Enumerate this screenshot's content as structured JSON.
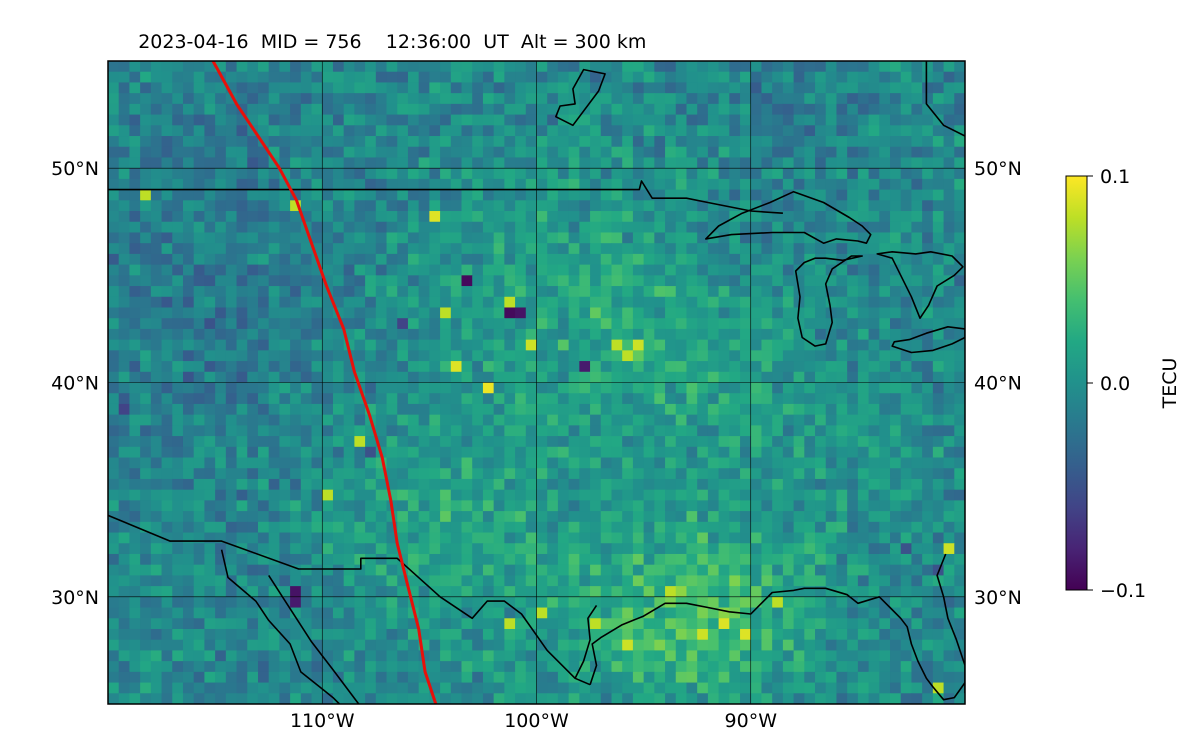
{
  "title": {
    "date": "2023-04-16",
    "mid": "MID = 756",
    "time": "12:36:00  UT",
    "alt": "Alt = 300 km"
  },
  "map": {
    "lon_range": [
      -120,
      -80
    ],
    "lat_range": [
      25,
      55
    ],
    "projection": "PlateCarree",
    "gridlines": true,
    "x_ticks": [
      {
        "value": -110,
        "label": "110°W"
      },
      {
        "value": -100,
        "label": "100°W"
      },
      {
        "value": -90,
        "label": "90°W"
      }
    ],
    "y_ticks": [
      {
        "value": 50,
        "label": "50°N"
      },
      {
        "value": 40,
        "label": "40°N"
      },
      {
        "value": 30,
        "label": "30°N"
      }
    ],
    "terminator_color": "#e8100a",
    "coastline_color": "#000000"
  },
  "colorbar": {
    "label": "TECU",
    "colormap": "viridis",
    "min": -0.1,
    "max": 0.1,
    "ticks": [
      {
        "value": 0.1,
        "label": "0.1"
      },
      {
        "value": 0.0,
        "label": "0.0"
      },
      {
        "value": -0.1,
        "label": "−0.1"
      }
    ]
  },
  "chart_data": {
    "type": "heatmap",
    "title": "2023-04-16  MID = 756    12:36:00  UT  Alt = 300 km",
    "quantity": "differential TEC",
    "units": "TECU",
    "value_range": [
      -0.1,
      0.1
    ],
    "grid_resolution_deg": 0.5,
    "background_level": -0.005,
    "anomalies": [
      {
        "lon": -104.5,
        "lat": 32.5,
        "amplitude": 0.025,
        "sigma_deg": 4.0
      },
      {
        "lon": -95.0,
        "lat": 29.0,
        "amplitude": 0.03,
        "sigma_deg": 3.0
      },
      {
        "lon": -91.0,
        "lat": 28.5,
        "amplitude": 0.03,
        "sigma_deg": 2.5
      },
      {
        "lon": -99.5,
        "lat": 44.5,
        "amplitude": 0.015,
        "sigma_deg": 4.0
      },
      {
        "lon": -95.0,
        "lat": 41.5,
        "amplitude": 0.02,
        "sigma_deg": 3.0
      },
      {
        "lon": -89.0,
        "lat": 36.0,
        "amplitude": 0.012,
        "sigma_deg": 4.0
      },
      {
        "lon": -116.0,
        "lat": 42.0,
        "amplitude": -0.012,
        "sigma_deg": 5.0
      },
      {
        "lon": -115.0,
        "lat": 52.0,
        "amplitude": -0.01,
        "sigma_deg": 4.0
      },
      {
        "lon": -88.0,
        "lat": 54.0,
        "amplitude": -0.012,
        "sigma_deg": 3.0
      },
      {
        "lon": -110.0,
        "lat": 27.0,
        "amplitude": -0.008,
        "sigma_deg": 4.0
      }
    ],
    "hot_spots": [
      {
        "lon": -102.5,
        "lat": 39.5,
        "value": 0.095
      },
      {
        "lon": -104.0,
        "lat": 40.5,
        "value": 0.09
      },
      {
        "lon": -95.5,
        "lat": 41.5,
        "value": 0.085
      },
      {
        "lon": -96.5,
        "lat": 41.5,
        "value": 0.08
      },
      {
        "lon": -96.0,
        "lat": 41.0,
        "value": 0.08
      },
      {
        "lon": -104.5,
        "lat": 43.0,
        "value": 0.08
      },
      {
        "lon": -101.5,
        "lat": 43.5,
        "value": 0.08
      },
      {
        "lon": -100.5,
        "lat": 41.5,
        "value": 0.085
      },
      {
        "lon": -105.0,
        "lat": 47.5,
        "value": 0.09
      },
      {
        "lon": -118.5,
        "lat": 48.5,
        "value": 0.08
      },
      {
        "lon": -111.5,
        "lat": 48.0,
        "value": 0.08
      },
      {
        "lon": -108.5,
        "lat": 37.0,
        "value": 0.08
      },
      {
        "lon": -110.0,
        "lat": 34.5,
        "value": 0.08
      },
      {
        "lon": -91.5,
        "lat": 28.5,
        "value": 0.09
      },
      {
        "lon": -90.5,
        "lat": 28.0,
        "value": 0.09
      },
      {
        "lon": -92.5,
        "lat": 28.0,
        "value": 0.085
      },
      {
        "lon": -94.0,
        "lat": 30.0,
        "value": 0.08
      },
      {
        "lon": -97.5,
        "lat": 28.5,
        "value": 0.08
      },
      {
        "lon": -101.5,
        "lat": 28.5,
        "value": 0.08
      },
      {
        "lon": -96.0,
        "lat": 27.5,
        "value": 0.085
      },
      {
        "lon": -81.0,
        "lat": 32.0,
        "value": 0.085
      },
      {
        "lon": -89.0,
        "lat": 29.5,
        "value": 0.08
      },
      {
        "lon": -100.0,
        "lat": 29.0,
        "value": 0.08
      },
      {
        "lon": -81.5,
        "lat": 25.5,
        "value": 0.08
      }
    ],
    "cold_spots": [
      {
        "lon": -103.5,
        "lat": 44.5,
        "value": -0.095
      },
      {
        "lon": -101.5,
        "lat": 43.0,
        "value": -0.095
      },
      {
        "lon": -101.0,
        "lat": 43.0,
        "value": -0.09
      },
      {
        "lon": -98.0,
        "lat": 40.5,
        "value": -0.085
      },
      {
        "lon": -111.5,
        "lat": 30.0,
        "value": -0.09
      },
      {
        "lon": -111.5,
        "lat": 29.5,
        "value": -0.085
      },
      {
        "lon": -106.5,
        "lat": 42.5,
        "value": -0.06
      },
      {
        "lon": -119.5,
        "lat": 38.5,
        "value": -0.06
      },
      {
        "lon": -108.0,
        "lat": 36.5,
        "value": -0.05
      },
      {
        "lon": -83.0,
        "lat": 32.0,
        "value": -0.05
      },
      {
        "lon": -81.5,
        "lat": 31.0,
        "value": -0.05
      }
    ],
    "terminator_line": {
      "lon": [
        -115.1,
        -114.0,
        -113.0,
        -112.0,
        -111.2,
        -110.5,
        -109.8,
        -109.0,
        -108.5,
        -107.8,
        -107.2,
        -106.8,
        -106.5,
        -106.0,
        -105.5,
        -105.2,
        -104.7
      ],
      "lat": [
        55.0,
        53.0,
        51.5,
        50.0,
        48.5,
        46.5,
        44.5,
        42.5,
        40.5,
        38.5,
        36.5,
        34.5,
        32.5,
        30.5,
        28.5,
        26.5,
        25.0
      ]
    },
    "borders": [
      {
        "name": "us-canada-border",
        "lon": [
          -120,
          -115,
          -110,
          -105,
          -100,
          -95.2,
          -95.1,
          -94.6,
          -94.0,
          -93.0,
          -92.0,
          -90.0,
          -88.5
        ],
        "lat": [
          49.0,
          49.0,
          49.0,
          49.0,
          49.0,
          49.0,
          49.4,
          48.6,
          48.6,
          48.6,
          48.4,
          48.0,
          47.9
        ]
      },
      {
        "name": "us-mexico-border",
        "lon": [
          -120,
          -117.1,
          -114.7,
          -111.1,
          -108.2,
          -108.2,
          -106.5,
          -104.5,
          -103.0,
          -102.3,
          -101.5,
          -100.7,
          -99.5,
          -98.2,
          -97.5
        ],
        "lat": [
          33.8,
          32.6,
          32.6,
          31.3,
          31.3,
          31.8,
          31.8,
          30.0,
          29.0,
          29.8,
          29.8,
          29.2,
          27.5,
          26.2,
          25.9
        ]
      }
    ],
    "coastlines": [
      {
        "name": "gulf-coast",
        "lon": [
          -97.5,
          -97.2,
          -97.4,
          -97.0,
          -96.0,
          -95.0,
          -94.0,
          -93.0,
          -92.0,
          -91.0,
          -90.0,
          -89.6,
          -89.0,
          -88.0,
          -87.5,
          -86.5,
          -85.5,
          -85.0,
          -84.0,
          -83.5,
          -83.0,
          -82.7,
          -82.5,
          -82.2,
          -81.8,
          -81.5,
          -81.0,
          -80.5,
          -80.0
        ],
        "lat": [
          25.9,
          26.8,
          27.8,
          28.1,
          28.7,
          29.1,
          29.7,
          29.7,
          29.5,
          29.3,
          29.2,
          29.6,
          30.2,
          30.3,
          30.4,
          30.4,
          30.1,
          29.7,
          30.0,
          29.5,
          29.0,
          28.6,
          27.8,
          27.0,
          26.2,
          25.8,
          25.2,
          25.3,
          26.0
        ]
      },
      {
        "name": "florida-atlantic-coast",
        "lon": [
          -80.0,
          -80.0,
          -80.4,
          -80.8,
          -81.0,
          -81.3,
          -80.9
        ],
        "lat": [
          25.5,
          26.8,
          28.0,
          29.0,
          30.0,
          31.0,
          32.0
        ]
      },
      {
        "name": "baja-gulf-coast",
        "lon": [
          -114.7,
          -114.4,
          -113.1,
          -112.5,
          -111.5,
          -111.0,
          -110.0,
          -109.5,
          -109.2
        ],
        "lat": [
          32.2,
          30.9,
          29.8,
          28.9,
          27.8,
          26.5,
          25.7,
          25.3,
          25.0
        ]
      },
      {
        "name": "mainland-mexico-pacific-coast",
        "lon": [
          -112.5,
          -111.6,
          -110.5,
          -109.5,
          -108.3
        ],
        "lat": [
          31.0,
          29.6,
          27.9,
          26.6,
          25.0
        ]
      }
    ],
    "lakes": [
      {
        "name": "lake-superior",
        "lon": [
          -92.1,
          -90.9,
          -89.0,
          -87.5,
          -86.6,
          -86.0,
          -85.0,
          -84.6,
          -84.4,
          -84.8,
          -85.4,
          -86.6,
          -88.0,
          -89.1,
          -90.4,
          -91.5,
          -92.1
        ],
        "lat": [
          46.7,
          46.9,
          47.0,
          47.0,
          46.5,
          46.7,
          46.6,
          46.5,
          46.9,
          47.3,
          47.7,
          48.4,
          48.9,
          48.4,
          47.9,
          47.3,
          46.7
        ]
      },
      {
        "name": "lake-michigan",
        "lon": [
          -87.9,
          -87.7,
          -87.8,
          -87.6,
          -87.0,
          -86.5,
          -86.2,
          -86.3,
          -86.5,
          -86.2,
          -85.3,
          -84.8,
          -85.7,
          -86.5,
          -87.0,
          -87.5,
          -87.9
        ],
        "lat": [
          45.2,
          44.0,
          43.0,
          42.1,
          41.7,
          41.8,
          42.8,
          43.6,
          44.6,
          45.3,
          45.9,
          45.9,
          45.7,
          45.8,
          45.8,
          45.6,
          45.2
        ]
      },
      {
        "name": "lake-huron",
        "lon": [
          -84.1,
          -83.4,
          -83.0,
          -82.5,
          -82.1,
          -81.7,
          -81.3,
          -80.5,
          -80.1,
          -80.6,
          -81.6,
          -82.3,
          -83.4,
          -84.1
        ],
        "lat": [
          46.0,
          45.8,
          45.0,
          44.0,
          43.0,
          43.6,
          44.5,
          45.0,
          45.4,
          45.9,
          46.1,
          46.0,
          46.1,
          46.0
        ]
      },
      {
        "name": "lake-erie",
        "lon": [
          -83.4,
          -82.5,
          -81.5,
          -80.6,
          -80.0,
          -80.0,
          -80.8,
          -81.8,
          -82.6,
          -83.3,
          -83.4
        ],
        "lat": [
          41.7,
          41.4,
          41.5,
          41.8,
          42.1,
          42.5,
          42.6,
          42.3,
          42.0,
          41.9,
          41.7
        ]
      },
      {
        "name": "lake-winnipeg",
        "lon": [
          -97.1,
          -96.8,
          -97.8,
          -98.3,
          -98.2,
          -98.9,
          -99.1,
          -98.3,
          -97.1
        ],
        "lat": [
          53.6,
          54.4,
          54.6,
          53.7,
          53.0,
          52.9,
          52.4,
          52.0,
          53.6
        ]
      }
    ],
    "mexico_internal_border": {
      "lon": [
        -98.2,
        -97.8,
        -97.5,
        -97.6,
        -97.2
      ],
      "lat": [
        26.2,
        27.0,
        28.0,
        29.0,
        29.6
      ]
    },
    "canada_features": {
      "lon": [
        -81.8,
        -81.8,
        -81.0,
        -80.0
      ],
      "lat": [
        55.0,
        53.0,
        52.0,
        51.5
      ]
    }
  }
}
